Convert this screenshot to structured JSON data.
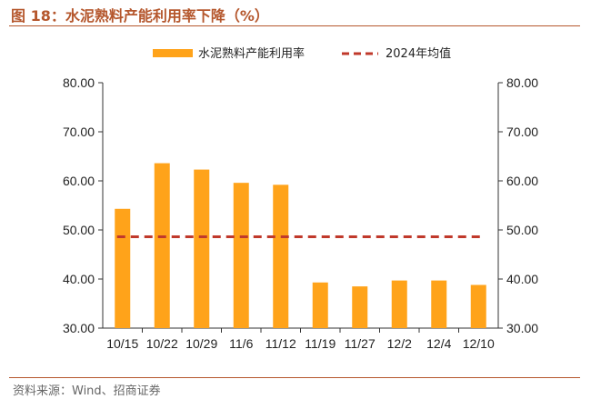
{
  "header": {
    "title": "图 18：水泥熟料产能利用率下降（%）"
  },
  "footer": {
    "source": "资料来源：Wind、招商证券"
  },
  "colors": {
    "bar": "#FFA31A",
    "reference_line": "#C0392B",
    "title": "#B5572D",
    "axis": "#333333"
  },
  "chart_data": {
    "type": "bar",
    "categories": [
      "10/15",
      "10/22",
      "10/29",
      "11/6",
      "11/12",
      "11/19",
      "11/27",
      "12/2",
      "12/4",
      "12/10"
    ],
    "series": [
      {
        "name": "水泥熟料产能利用率",
        "values": [
          54.3,
          63.6,
          62.3,
          59.6,
          59.2,
          39.3,
          38.5,
          39.7,
          39.7,
          38.8
        ]
      }
    ],
    "reference_line": {
      "name": "2024年均值",
      "value": 48.6
    },
    "ylim": [
      30,
      80
    ],
    "yticks": [
      "30.00",
      "40.00",
      "50.00",
      "60.00",
      "70.00",
      "80.00"
    ],
    "y_tick_values": [
      30,
      40,
      50,
      60,
      70,
      80
    ],
    "right_axis_mirrors_left": true,
    "legend_position": "top-center",
    "grid": false
  }
}
